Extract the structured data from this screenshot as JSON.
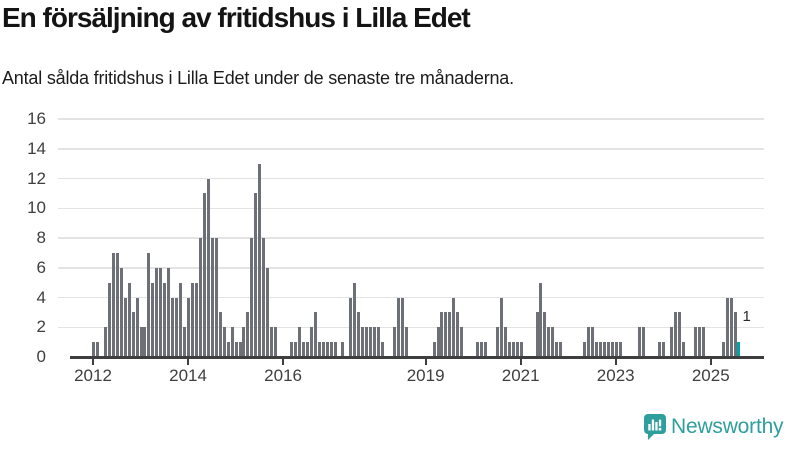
{
  "title": "En försäljning av fritidshus i Lilla Edet",
  "subtitle": "Antal sålda fritidshus i Lilla Edet under de senaste tre månaderna.",
  "logo": {
    "text": "Newsworthy"
  },
  "chart_data": {
    "type": "bar",
    "title": "En försäljning av fritidshus i Lilla Edet",
    "subtitle": "Antal sålda fritidshus i Lilla Edet under de senaste tre månaderna.",
    "unit": "sålda fritidshus (rullande 3 månader)",
    "start_month": "2012-01",
    "end_month": "2025-08",
    "values": [
      1,
      1,
      0,
      2,
      5,
      7,
      7,
      6,
      4,
      5,
      3,
      4,
      2,
      2,
      7,
      5,
      6,
      6,
      5,
      6,
      4,
      4,
      5,
      2,
      4,
      5,
      5,
      8,
      11,
      12,
      8,
      8,
      3,
      2,
      1,
      2,
      1,
      1,
      2,
      3,
      8,
      11,
      13,
      8,
      6,
      2,
      2,
      0,
      0,
      0,
      1,
      1,
      2,
      1,
      1,
      2,
      3,
      1,
      1,
      1,
      1,
      1,
      0,
      1,
      0,
      4,
      5,
      3,
      2,
      2,
      2,
      2,
      2,
      1,
      0,
      0,
      2,
      4,
      4,
      2,
      0,
      0,
      0,
      0,
      0,
      0,
      1,
      2,
      3,
      3,
      3,
      4,
      3,
      2,
      0,
      0,
      0,
      1,
      1,
      1,
      0,
      0,
      2,
      4,
      2,
      1,
      1,
      1,
      1,
      0,
      0,
      0,
      3,
      5,
      3,
      2,
      2,
      1,
      1,
      0,
      0,
      0,
      0,
      0,
      1,
      2,
      2,
      1,
      1,
      1,
      1,
      1,
      1,
      1,
      0,
      0,
      0,
      0,
      2,
      2,
      0,
      0,
      0,
      1,
      1,
      0,
      2,
      3,
      3,
      1,
      0,
      0,
      2,
      2,
      2,
      0,
      0,
      0,
      0,
      1,
      4,
      4,
      3,
      1
    ],
    "highlight_last_bar": true,
    "last_value_label": "1",
    "y_ticks": [
      0,
      2,
      4,
      6,
      8,
      10,
      12,
      14,
      16
    ],
    "ylim": [
      0,
      16
    ],
    "x_ticks": [
      {
        "label": "2012",
        "month_index": 0
      },
      {
        "label": "2014",
        "month_index": 24
      },
      {
        "label": "2016",
        "month_index": 48
      },
      {
        "label": "2019",
        "month_index": 84
      },
      {
        "label": "2021",
        "month_index": 108
      },
      {
        "label": "2023",
        "month_index": 132
      },
      {
        "label": "2025",
        "month_index": 156
      }
    ],
    "grid": true,
    "legend": "none",
    "bar_color": "#6e7078",
    "highlight_color": "#00a3a9",
    "axis_color": "#3e3e3e",
    "gridline_color": "#e3e3e3"
  }
}
